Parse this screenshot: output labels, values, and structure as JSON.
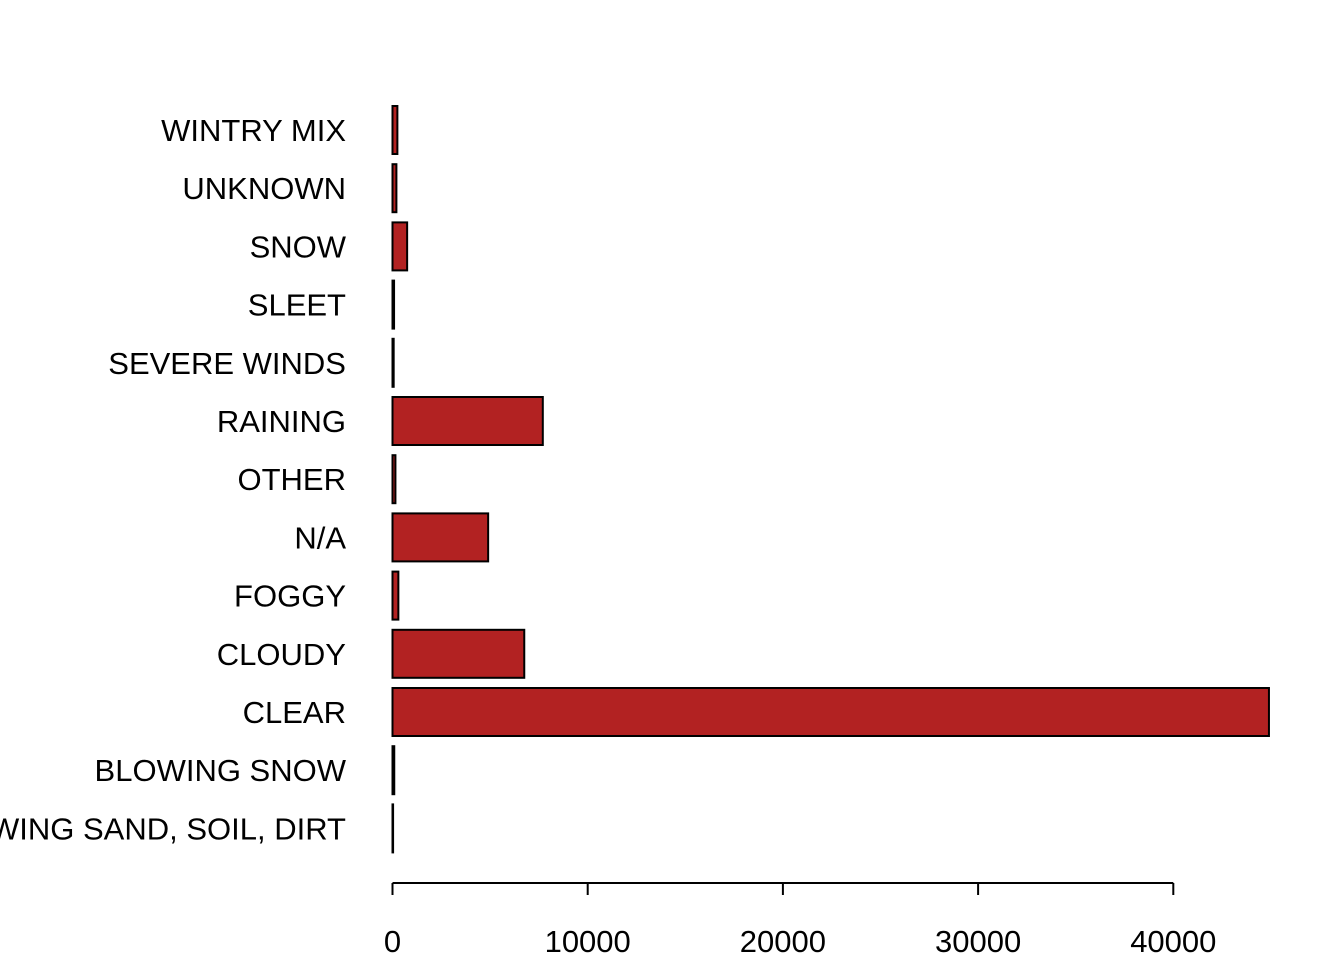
{
  "chart_data": {
    "type": "bar",
    "orientation": "horizontal",
    "categories": [
      "WINTRY MIX",
      "UNKNOWN",
      "SNOW",
      "SLEET",
      "SEVERE WINDS",
      "RAINING",
      "OTHER",
      "N/A",
      "FOGGY",
      "CLOUDY",
      "CLEAR",
      "BLOWING SNOW",
      "BLOWING SAND, SOIL, DIRT"
    ],
    "values": [
      250,
      200,
      750,
      80,
      60,
      7700,
      150,
      4900,
      300,
      6750,
      44900,
      90,
      30
    ],
    "xlim": [
      0,
      44900
    ],
    "x_ticks": [
      0,
      10000,
      20000,
      30000,
      40000
    ],
    "x_tick_labels": [
      "0",
      "10000",
      "20000",
      "30000",
      "40000"
    ],
    "title": "",
    "xlabel": "",
    "ylabel": "",
    "grid": false,
    "bar_color": "#b22222",
    "bar_edge_color": "#000000"
  }
}
